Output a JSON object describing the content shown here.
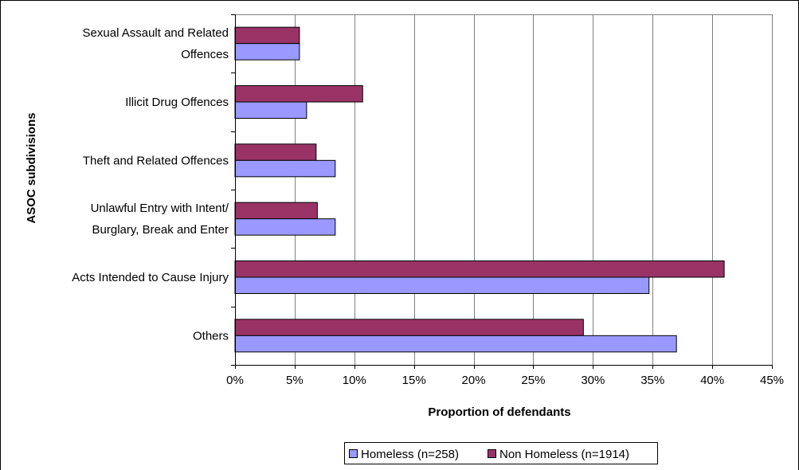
{
  "chart_data": {
    "type": "bar",
    "orientation": "horizontal",
    "categories": [
      [
        "Sexual Assault and Related",
        "Offences"
      ],
      [
        "Illicit Drug Offences"
      ],
      [
        "Theft and Related Offences"
      ],
      [
        "Unlawful Entry with Intent/",
        "Burglary, Break and Enter"
      ],
      [
        "Acts Intended to Cause Injury"
      ],
      [
        "Others"
      ]
    ],
    "series": [
      {
        "name": "Homeless (n=258)",
        "color": "#9999ff",
        "values": [
          5.4,
          6.0,
          8.4,
          8.4,
          34.7,
          37.0
        ]
      },
      {
        "name": "Non Homeless (n=1914)",
        "color": "#993366",
        "values": [
          5.4,
          10.7,
          6.8,
          6.9,
          41.0,
          29.2
        ]
      }
    ],
    "xlabel": "Proportion of defendants",
    "ylabel": "ASOC subdivisions",
    "xlim": [
      0,
      45
    ],
    "xticks": [
      0,
      5,
      10,
      15,
      20,
      25,
      30,
      35,
      40,
      45
    ],
    "tick_suffix": "%",
    "grid": "vertical",
    "legend_position": "bottom"
  }
}
